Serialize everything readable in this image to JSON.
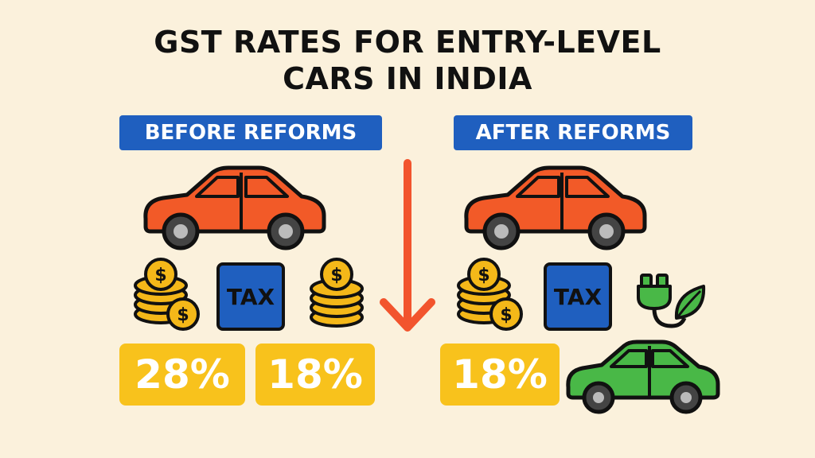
{
  "title_line1": "GST RATES FOR ENTRY-LEVEL",
  "title_line2": "CARS IN INDIA",
  "before": {
    "label": "BEFORE REFORMS",
    "tax_label": "TAX",
    "rates": [
      "28%",
      "18%"
    ]
  },
  "after": {
    "label": "AFTER REFORMS",
    "tax_label": "TAX",
    "rates": [
      "18%"
    ]
  },
  "colors": {
    "label_blue": "#1f5fbf",
    "rate_yellow": "#f8c21c",
    "car_orange": "#f25a28",
    "car_green": "#49b847",
    "arrow": "#f2542d"
  }
}
